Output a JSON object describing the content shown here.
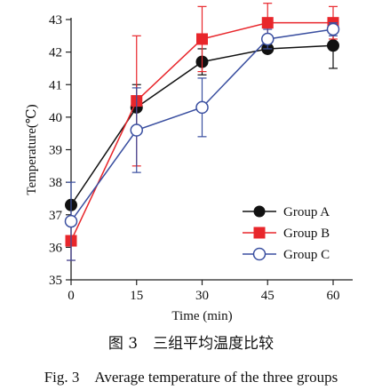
{
  "chart_data": {
    "type": "line",
    "xlabel": "Time (min)",
    "ylabel": "Temperature(℃)",
    "x": [
      0,
      15,
      30,
      45,
      60
    ],
    "xlim": [
      0,
      60
    ],
    "ylim": [
      35,
      43
    ],
    "xticks": [
      "0",
      "15",
      "30",
      "45",
      "60"
    ],
    "yticks": [
      "35",
      "36",
      "37",
      "38",
      "39",
      "40",
      "41",
      "42",
      "43"
    ],
    "grid": false,
    "legend_position": "bottom-right",
    "series": [
      {
        "name": "Group A",
        "values": [
          37.3,
          40.3,
          41.7,
          42.1,
          42.2
        ],
        "error": [
          0,
          0.7,
          0.4,
          0,
          0.7
        ],
        "marker": "filled-circle",
        "color": "#111111"
      },
      {
        "name": "Group B",
        "values": [
          36.2,
          40.5,
          42.4,
          42.9,
          42.9
        ],
        "error": [
          0.6,
          2.0,
          1.0,
          0.6,
          0.5
        ],
        "marker": "filled-square",
        "color": "#e8262b"
      },
      {
        "name": "Group C",
        "values": [
          36.8,
          39.6,
          40.3,
          42.4,
          42.7
        ],
        "error": [
          1.2,
          1.3,
          0.9,
          0.3,
          0.2
        ],
        "marker": "open-circle",
        "color": "#3a4fa0"
      }
    ]
  },
  "caption_cn": "图 3　三组平均温度比较",
  "caption_en": "Fig. 3　Average temperature of the three groups"
}
